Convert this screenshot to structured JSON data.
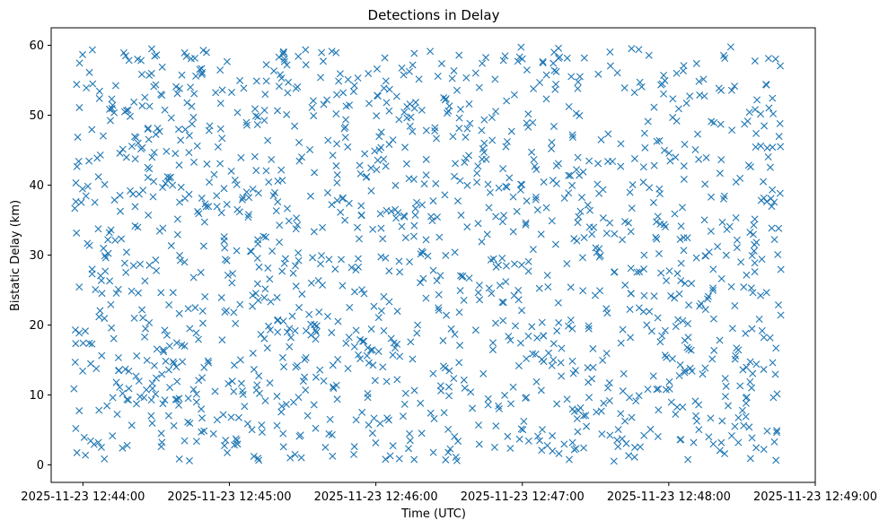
{
  "chart_data": {
    "type": "scatter",
    "title": "Detections in Delay",
    "xlabel": "Time (UTC)",
    "ylabel": "Bistatic Delay (km)",
    "marker": "x",
    "color": "#1f77b4",
    "grid": false,
    "x_unit": "time",
    "xlim": [
      "2025-11-23 12:43:47",
      "2025-11-23 12:49:00"
    ],
    "ylim": [
      -2.5,
      62.5
    ],
    "x_ticks": [
      "2025-11-23 12:44:00",
      "2025-11-23 12:45:00",
      "2025-11-23 12:46:00",
      "2025-11-23 12:47:00",
      "2025-11-23 12:48:00",
      "2025-11-23 12:49:00"
    ],
    "y_ticks": [
      0,
      10,
      20,
      30,
      40,
      50,
      60
    ],
    "point_count": 1500,
    "x_range": [
      "2025-11-23 12:43:56",
      "2025-11-23 12:48:46"
    ],
    "y_range": [
      0.5,
      59.8
    ]
  }
}
